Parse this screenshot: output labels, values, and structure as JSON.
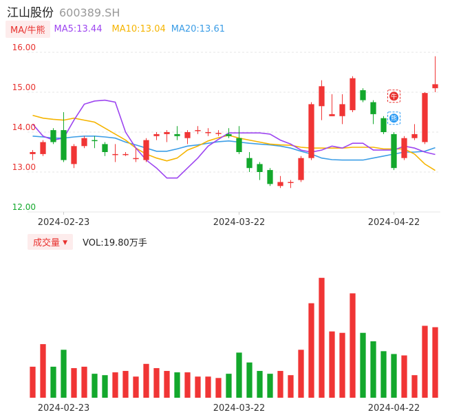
{
  "header": {
    "name": "江山股份",
    "code": "600389.SH"
  },
  "ma_bar": {
    "tab": "MA/牛熊",
    "ma5": "MA5:13.44",
    "ma10": "MA10:13.04",
    "ma20": "MA20:13.61"
  },
  "volume_bar": {
    "tab": "成交量",
    "arrow": "▼",
    "vol": "VOL:19.80万手"
  },
  "colors": {
    "up": "#f03535",
    "down": "#13a82c",
    "ma5": "#9d45f0",
    "ma10": "#f5b400",
    "ma20": "#3b9de6"
  },
  "markers": [
    {
      "label": "牛",
      "index": 35,
      "price": 14.9,
      "color": "#e8322f"
    },
    {
      "label": "熊",
      "index": 35,
      "price": 14.35,
      "color": "#2196f3"
    }
  ],
  "chart_data": [
    {
      "type": "candlestick",
      "y_ticks": [
        "16.00",
        "15.00",
        "14.00",
        "13.00",
        "12.00"
      ],
      "ylim": [
        12.0,
        16.0
      ],
      "x_ticks": [
        {
          "index": 3,
          "label": "2024-02-23"
        },
        {
          "index": 20,
          "label": "2024-03-22"
        },
        {
          "index": 35,
          "label": "2024-04-22"
        }
      ],
      "candles": [
        [
          13.45,
          13.5,
          13.55,
          13.3
        ],
        [
          13.45,
          13.75,
          13.8,
          13.4
        ],
        [
          14.05,
          13.75,
          14.1,
          13.7
        ],
        [
          14.05,
          13.3,
          14.5,
          13.25
        ],
        [
          13.2,
          13.65,
          13.7,
          13.1
        ],
        [
          13.65,
          13.85,
          13.9,
          13.6
        ],
        [
          13.8,
          13.78,
          13.9,
          13.6
        ],
        [
          13.7,
          13.5,
          13.75,
          13.4
        ],
        [
          13.45,
          13.45,
          13.7,
          13.25
        ],
        [
          13.45,
          13.45,
          13.5,
          13.4
        ],
        [
          13.35,
          13.35,
          13.6,
          13.25
        ],
        [
          13.3,
          13.8,
          13.85,
          13.25
        ],
        [
          13.9,
          13.95,
          14.0,
          13.8
        ],
        [
          13.95,
          14.0,
          14.05,
          13.75
        ],
        [
          13.95,
          13.9,
          14.15,
          13.8
        ],
        [
          13.85,
          14.0,
          14.05,
          13.7
        ],
        [
          14.05,
          14.05,
          14.15,
          13.95
        ],
        [
          13.98,
          14.0,
          14.1,
          13.9
        ],
        [
          13.98,
          13.98,
          14.05,
          13.9
        ],
        [
          13.95,
          13.9,
          14.1,
          13.85
        ],
        [
          13.85,
          13.5,
          14.15,
          13.45
        ],
        [
          13.35,
          13.1,
          13.5,
          13.0
        ],
        [
          13.2,
          13.0,
          13.25,
          12.8
        ],
        [
          13.05,
          12.7,
          13.1,
          12.65
        ],
        [
          12.65,
          12.75,
          12.9,
          12.6
        ],
        [
          12.75,
          12.75,
          12.8,
          12.6
        ],
        [
          12.8,
          13.35,
          13.4,
          12.75
        ],
        [
          13.35,
          14.7,
          14.75,
          13.3
        ],
        [
          14.65,
          15.15,
          15.3,
          14.3
        ],
        [
          14.4,
          14.45,
          14.95,
          14.4
        ],
        [
          14.4,
          14.7,
          14.95,
          14.2
        ],
        [
          14.55,
          15.35,
          15.4,
          14.5
        ],
        [
          15.05,
          14.8,
          15.1,
          14.75
        ],
        [
          14.75,
          14.45,
          14.8,
          14.2
        ],
        [
          14.35,
          14.0,
          14.4,
          13.95
        ],
        [
          13.95,
          13.1,
          14.0,
          13.05
        ],
        [
          13.35,
          13.85,
          13.9,
          13.3
        ],
        [
          13.85,
          13.95,
          14.2,
          13.8
        ],
        [
          13.75,
          14.98,
          15.0,
          13.7
        ],
        [
          15.1,
          15.2,
          15.9,
          15.0
        ]
      ],
      "volume_ylim": [
        0,
        100
      ],
      "volumes": [
        22,
        38,
        22,
        34,
        21,
        22,
        17,
        16,
        18,
        19,
        15,
        24,
        21,
        19,
        18,
        18,
        15,
        15,
        14,
        17,
        32,
        25,
        19,
        17,
        19,
        16,
        34,
        67,
        85,
        47,
        46,
        74,
        46,
        40,
        33,
        31,
        30,
        16,
        51,
        50
      ],
      "ma5": [
        14.2,
        13.9,
        13.8,
        13.85,
        14.3,
        14.7,
        14.78,
        14.8,
        14.75,
        14.0,
        13.6,
        13.3,
        13.1,
        12.85,
        12.85,
        13.1,
        13.35,
        13.65,
        13.82,
        13.98,
        13.98,
        13.98,
        13.98,
        13.95,
        13.8,
        13.7,
        13.55,
        13.5,
        13.55,
        13.65,
        13.6,
        13.72,
        13.72,
        13.55,
        13.55,
        13.55,
        13.65,
        13.6,
        13.5,
        13.44
      ],
      "ma10": [
        14.42,
        14.35,
        14.32,
        14.3,
        14.35,
        14.3,
        14.25,
        14.1,
        13.95,
        13.8,
        13.6,
        13.45,
        13.35,
        13.28,
        13.35,
        13.55,
        13.65,
        13.78,
        13.86,
        13.92,
        13.85,
        13.8,
        13.75,
        13.7,
        13.68,
        13.67,
        13.62,
        13.6,
        13.6,
        13.6,
        13.6,
        13.62,
        13.62,
        13.62,
        13.58,
        13.58,
        13.58,
        13.45,
        13.2,
        13.04
      ],
      "ma20": [
        13.9,
        13.88,
        13.85,
        13.85,
        13.88,
        13.9,
        13.9,
        13.88,
        13.85,
        13.75,
        13.68,
        13.6,
        13.52,
        13.52,
        13.58,
        13.65,
        13.68,
        13.72,
        13.76,
        13.78,
        13.75,
        13.72,
        13.7,
        13.68,
        13.65,
        13.6,
        13.52,
        13.45,
        13.35,
        13.31,
        13.3,
        13.3,
        13.3,
        13.35,
        13.4,
        13.45,
        13.5,
        13.5,
        13.52,
        13.61
      ]
    }
  ]
}
